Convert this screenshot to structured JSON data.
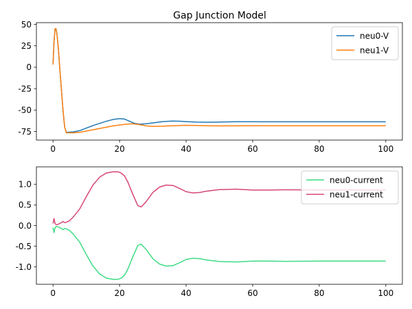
{
  "figure": {
    "title": "Gap Junction Model"
  },
  "chart_data": [
    {
      "type": "line",
      "title": "Gap Junction Model",
      "xlabel": "",
      "ylabel": "",
      "xlim": [
        -5,
        105
      ],
      "ylim": [
        -85,
        52
      ],
      "xticks": [
        0,
        20,
        40,
        60,
        80,
        100
      ],
      "yticks": [
        50,
        25,
        0,
        -25,
        -50,
        -75
      ],
      "grid": false,
      "legend": "top-right",
      "series": [
        {
          "name": "neu0-V",
          "color": "#1f77b4",
          "x": [
            0,
            0.3,
            0.6,
            0.9,
            1.2,
            1.6,
            2.0,
            2.5,
            3.0,
            3.5,
            4.0,
            6,
            8,
            10,
            12,
            14,
            16,
            18,
            20,
            21.5,
            23,
            24.5,
            26,
            28,
            30,
            33,
            36,
            38,
            40,
            43,
            46,
            50,
            55,
            60,
            70,
            80,
            90,
            100
          ],
          "y": [
            4,
            30,
            44,
            45,
            38,
            22,
            0,
            -25,
            -50,
            -70,
            -76,
            -75.5,
            -74,
            -71,
            -68,
            -65.5,
            -63,
            -61,
            -60,
            -60.5,
            -63,
            -65.5,
            -66.5,
            -66,
            -65,
            -63.5,
            -62.8,
            -63,
            -63.5,
            -64,
            -64.2,
            -64,
            -63.6,
            -63.6,
            -63.7,
            -63.7,
            -63.7,
            -63.7
          ]
        },
        {
          "name": "neu1-V",
          "color": "#ff7f0e",
          "x": [
            0,
            0.3,
            0.6,
            0.9,
            1.2,
            1.6,
            2.0,
            2.5,
            3.0,
            3.5,
            4.0,
            6,
            8,
            10,
            12,
            14,
            16,
            18,
            20,
            22,
            24,
            26,
            28,
            30,
            33,
            36,
            38,
            40,
            43,
            46,
            50,
            55,
            60,
            70,
            80,
            90,
            100
          ],
          "y": [
            3,
            30,
            45,
            45,
            38,
            22,
            0,
            -25,
            -50,
            -70,
            -76.5,
            -76.5,
            -76,
            -74.5,
            -73,
            -71.5,
            -70,
            -68.5,
            -67.5,
            -66.5,
            -66,
            -67,
            -68.5,
            -69,
            -68.8,
            -68.3,
            -68,
            -67.8,
            -68,
            -68.3,
            -68.5,
            -68.4,
            -68.3,
            -68.3,
            -68.3,
            -68.3,
            -68.3
          ]
        }
      ]
    },
    {
      "type": "line",
      "title": "",
      "xlabel": "",
      "ylabel": "",
      "xlim": [
        -5,
        105
      ],
      "ylim": [
        -1.42,
        1.42
      ],
      "xticks": [
        0,
        20,
        40,
        60,
        80,
        100
      ],
      "yticks": [
        1.0,
        0.5,
        0.0,
        -0.5,
        -1.0
      ],
      "grid": false,
      "legend": "top-right",
      "series": [
        {
          "name": "neu0-current",
          "color": "#3ddc84",
          "x": [
            0,
            0.3,
            0.6,
            1.0,
            1.5,
            2.0,
            2.5,
            3.0,
            3.5,
            4.0,
            5,
            6,
            8,
            10,
            12,
            14,
            16,
            18,
            19.5,
            20.5,
            21.5,
            22.5,
            24,
            25.5,
            26.5,
            28,
            30,
            32,
            34,
            36,
            38,
            40,
            42,
            44,
            46,
            50,
            55,
            60,
            65,
            70,
            80,
            90,
            100
          ],
          "y": [
            -0.05,
            -0.17,
            -0.05,
            -0.02,
            -0.03,
            -0.05,
            -0.07,
            -0.1,
            -0.07,
            -0.08,
            -0.12,
            -0.2,
            -0.4,
            -0.7,
            -0.98,
            -1.17,
            -1.27,
            -1.3,
            -1.3,
            -1.27,
            -1.2,
            -1.05,
            -0.75,
            -0.48,
            -0.45,
            -0.58,
            -0.8,
            -0.93,
            -0.98,
            -0.97,
            -0.9,
            -0.82,
            -0.79,
            -0.8,
            -0.83,
            -0.87,
            -0.88,
            -0.86,
            -0.86,
            -0.865,
            -0.86,
            -0.86,
            -0.86
          ]
        },
        {
          "name": "neu1-current",
          "color": "#d6447a",
          "x": [
            0,
            0.3,
            0.6,
            1.0,
            1.5,
            2.0,
            2.5,
            3.0,
            3.5,
            4.0,
            5,
            6,
            8,
            10,
            12,
            14,
            16,
            18,
            19.5,
            20.5,
            21.5,
            22.5,
            24,
            25.5,
            26.5,
            28,
            30,
            32,
            34,
            36,
            38,
            40,
            42,
            44,
            46,
            50,
            55,
            60,
            65,
            70,
            80,
            90,
            100
          ],
          "y": [
            0.05,
            0.17,
            0.05,
            0.02,
            0.03,
            0.05,
            0.07,
            0.1,
            0.07,
            0.08,
            0.12,
            0.2,
            0.4,
            0.7,
            0.98,
            1.17,
            1.27,
            1.3,
            1.3,
            1.27,
            1.2,
            1.05,
            0.75,
            0.48,
            0.45,
            0.58,
            0.8,
            0.93,
            0.98,
            0.97,
            0.9,
            0.82,
            0.79,
            0.8,
            0.83,
            0.87,
            0.88,
            0.86,
            0.86,
            0.865,
            0.86,
            0.86,
            0.86
          ]
        }
      ]
    }
  ]
}
